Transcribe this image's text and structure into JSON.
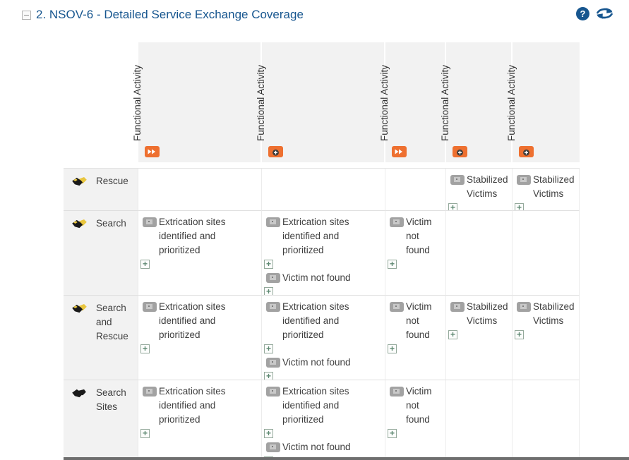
{
  "header": {
    "title": "2. NSOV-6 - Detailed Service Exchange Coverage",
    "help_glyph": "?"
  },
  "icons": {
    "expand_glyph": "+",
    "column_icon_legend": [
      "fast-forward",
      "plus-circle"
    ],
    "row_icon_legend": [
      "handshake",
      "handshake-dark"
    ]
  },
  "colors": {
    "title_blue": "#17568f",
    "orange": "#ee7030",
    "header_bg": "#f2f2f2",
    "grid_line": "#e0e0e0",
    "item_icon_gray": "#a2a2a2",
    "expand_green": "#5d8871",
    "handshake_yellow": "#e9c63e",
    "text": "#3e3e3e"
  },
  "matrix": {
    "columns": [
      {
        "label": "Functional Activity",
        "icon": "fast-forward"
      },
      {
        "label": "Functional Activity",
        "icon": "plus-circle"
      },
      {
        "label": "Functional Activity",
        "icon": "fast-forward"
      },
      {
        "label": "Functional Activity",
        "icon": "plus-circle"
      },
      {
        "label": "Functional Activity",
        "icon": "plus-circle"
      }
    ],
    "rows": [
      {
        "label": "Rescue",
        "icon": "handshake",
        "cells": [
          [],
          [],
          [],
          [
            "Stabilized Victims"
          ],
          [
            "Stabilized Victims"
          ]
        ]
      },
      {
        "label": "Search",
        "icon": "handshake",
        "cells": [
          [
            "Extrication sites identified and prioritized"
          ],
          [
            "Extrication sites identified and prioritized",
            "Victim not found"
          ],
          [
            "Victim not found"
          ],
          [],
          []
        ]
      },
      {
        "label": "Search and Rescue",
        "icon": "handshake",
        "cells": [
          [
            "Extrication sites identified and prioritized"
          ],
          [
            "Extrication sites identified and prioritized",
            "Victim not found"
          ],
          [
            "Victim not found"
          ],
          [
            "Stabilized Victims"
          ],
          [
            "Stabilized Victims"
          ]
        ]
      },
      {
        "label": "Search Sites",
        "icon": "handshake-dark",
        "cells": [
          [
            "Extrication sites identified and prioritized"
          ],
          [
            "Extrication sites identified and prioritized",
            "Victim not found"
          ],
          [
            "Victim not found"
          ],
          [],
          []
        ]
      }
    ]
  }
}
